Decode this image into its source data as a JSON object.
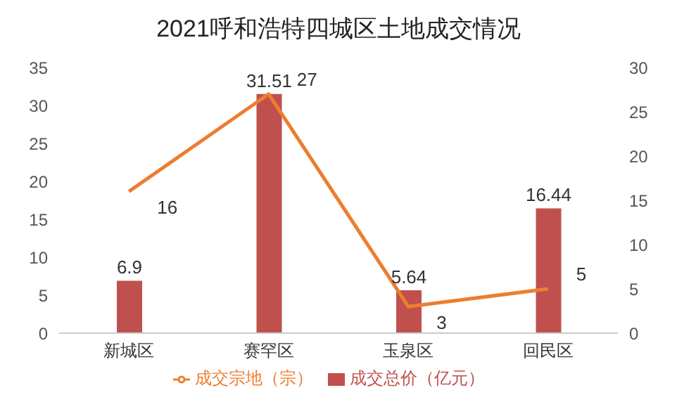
{
  "chart_data": {
    "type": "bar",
    "title": "2021呼和浩特四城区土地成交情况",
    "categories": [
      "新城区",
      "赛罕区",
      "玉泉区",
      "回民区"
    ],
    "series": [
      {
        "name": "成交总价（亿元）",
        "color": "#c0504d",
        "values": [
          6.9,
          31.51,
          5.64,
          16.44
        ]
      },
      {
        "name": "成交宗地（宗）",
        "type": "line",
        "axis": "y2",
        "color": "#ed7d31",
        "values": [
          16,
          27,
          3,
          5
        ]
      }
    ],
    "ylim": [
      0,
      35
    ],
    "yticks": [
      0,
      5,
      10,
      15,
      20,
      25,
      30,
      35
    ],
    "y2lim": [
      0,
      30
    ],
    "y2ticks": [
      0,
      5,
      10,
      15,
      20,
      25,
      30
    ],
    "data_labels": true,
    "legend": "bottom",
    "grid": false,
    "marker": "none"
  }
}
